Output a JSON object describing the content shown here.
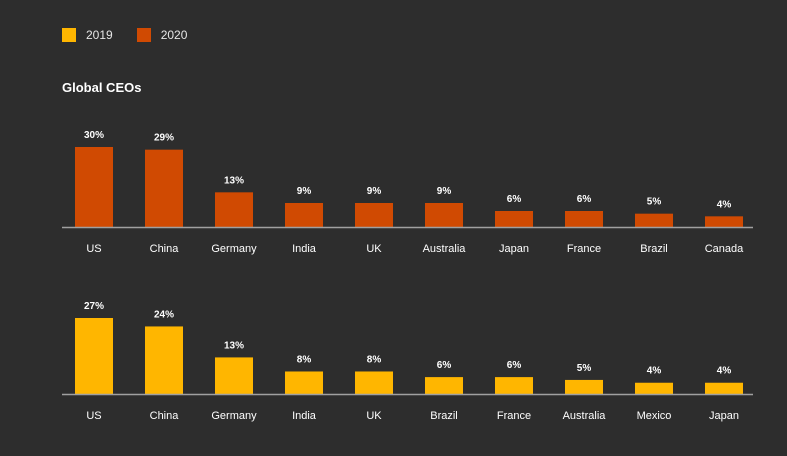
{
  "legend": [
    {
      "label": "2019",
      "color": "#ffb600"
    },
    {
      "label": "2020",
      "color": "#d04a02"
    }
  ],
  "title": "Global CEOs",
  "chart_data": [
    {
      "type": "bar",
      "series_name": "2020",
      "color": "#d04a02",
      "categories": [
        "US",
        "China",
        "Germany",
        "India",
        "UK",
        "Australia",
        "Japan",
        "France",
        "Brazil",
        "Canada"
      ],
      "values": [
        30,
        29,
        13,
        9,
        9,
        9,
        6,
        6,
        5,
        4
      ],
      "value_labels": [
        "30%",
        "29%",
        "13%",
        "9%",
        "9%",
        "9%",
        "6%",
        "6%",
        "5%",
        "4%"
      ],
      "ylim": [
        0,
        30
      ]
    },
    {
      "type": "bar",
      "series_name": "2019",
      "color": "#ffb600",
      "categories": [
        "US",
        "China",
        "Germany",
        "India",
        "UK",
        "Brazil",
        "France",
        "Australia",
        "Mexico",
        "Japan"
      ],
      "values": [
        27,
        24,
        13,
        8,
        8,
        6,
        6,
        5,
        4,
        4
      ],
      "value_labels": [
        "27%",
        "24%",
        "13%",
        "8%",
        "8%",
        "6%",
        "6%",
        "5%",
        "4%",
        "4%"
      ],
      "ylim": [
        0,
        27
      ]
    }
  ]
}
